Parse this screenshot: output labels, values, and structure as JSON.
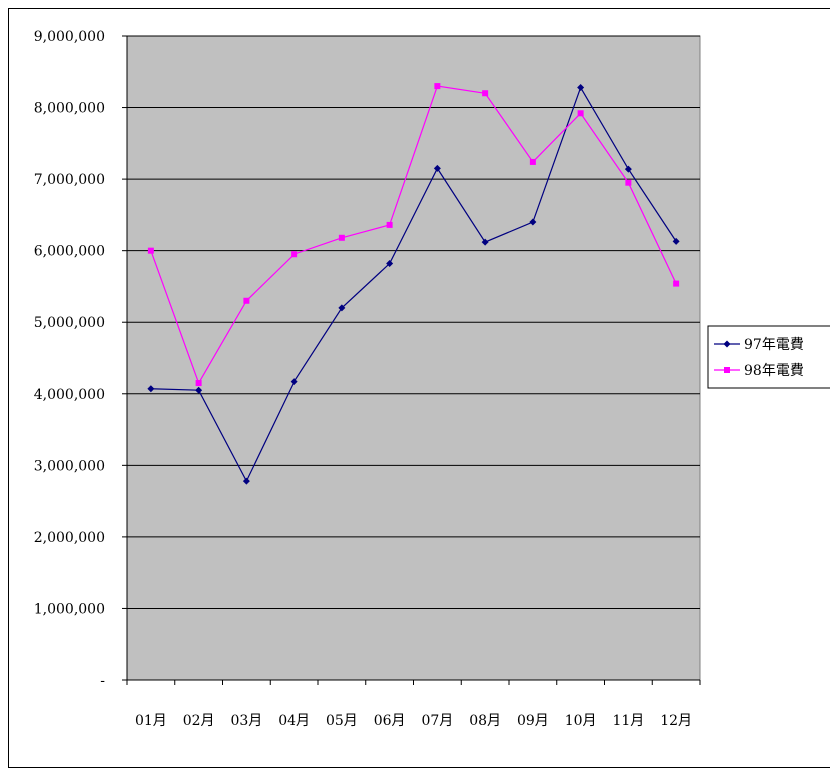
{
  "chart_data": {
    "type": "line",
    "title": "",
    "xlabel": "",
    "ylabel": "",
    "categories": [
      "01月",
      "02月",
      "03月",
      "04月",
      "05月",
      "06月",
      "07月",
      "08月",
      "09月",
      "10月",
      "11月",
      "12月"
    ],
    "ylim": [
      0,
      9000000
    ],
    "ytick_labels": [
      "-",
      "1,000,000",
      "2,000,000",
      "3,000,000",
      "4,000,000",
      "5,000,000",
      "6,000,000",
      "7,000,000",
      "8,000,000",
      "9,000,000"
    ],
    "grid": true,
    "legend_position": "right",
    "plot_background": "#c0c0c0",
    "series": [
      {
        "name": "97年電費",
        "color": "#000080",
        "marker": "diamond",
        "values": [
          4070000,
          4050000,
          2780000,
          4170000,
          5200000,
          5820000,
          7150000,
          6120000,
          6400000,
          8280000,
          7140000,
          6130000
        ]
      },
      {
        "name": "98年電費",
        "color": "#ff00ff",
        "marker": "square",
        "values": [
          6000000,
          4150000,
          5300000,
          5950000,
          6180000,
          6360000,
          8300000,
          8200000,
          7240000,
          7920000,
          6950000,
          5540000
        ]
      }
    ]
  }
}
